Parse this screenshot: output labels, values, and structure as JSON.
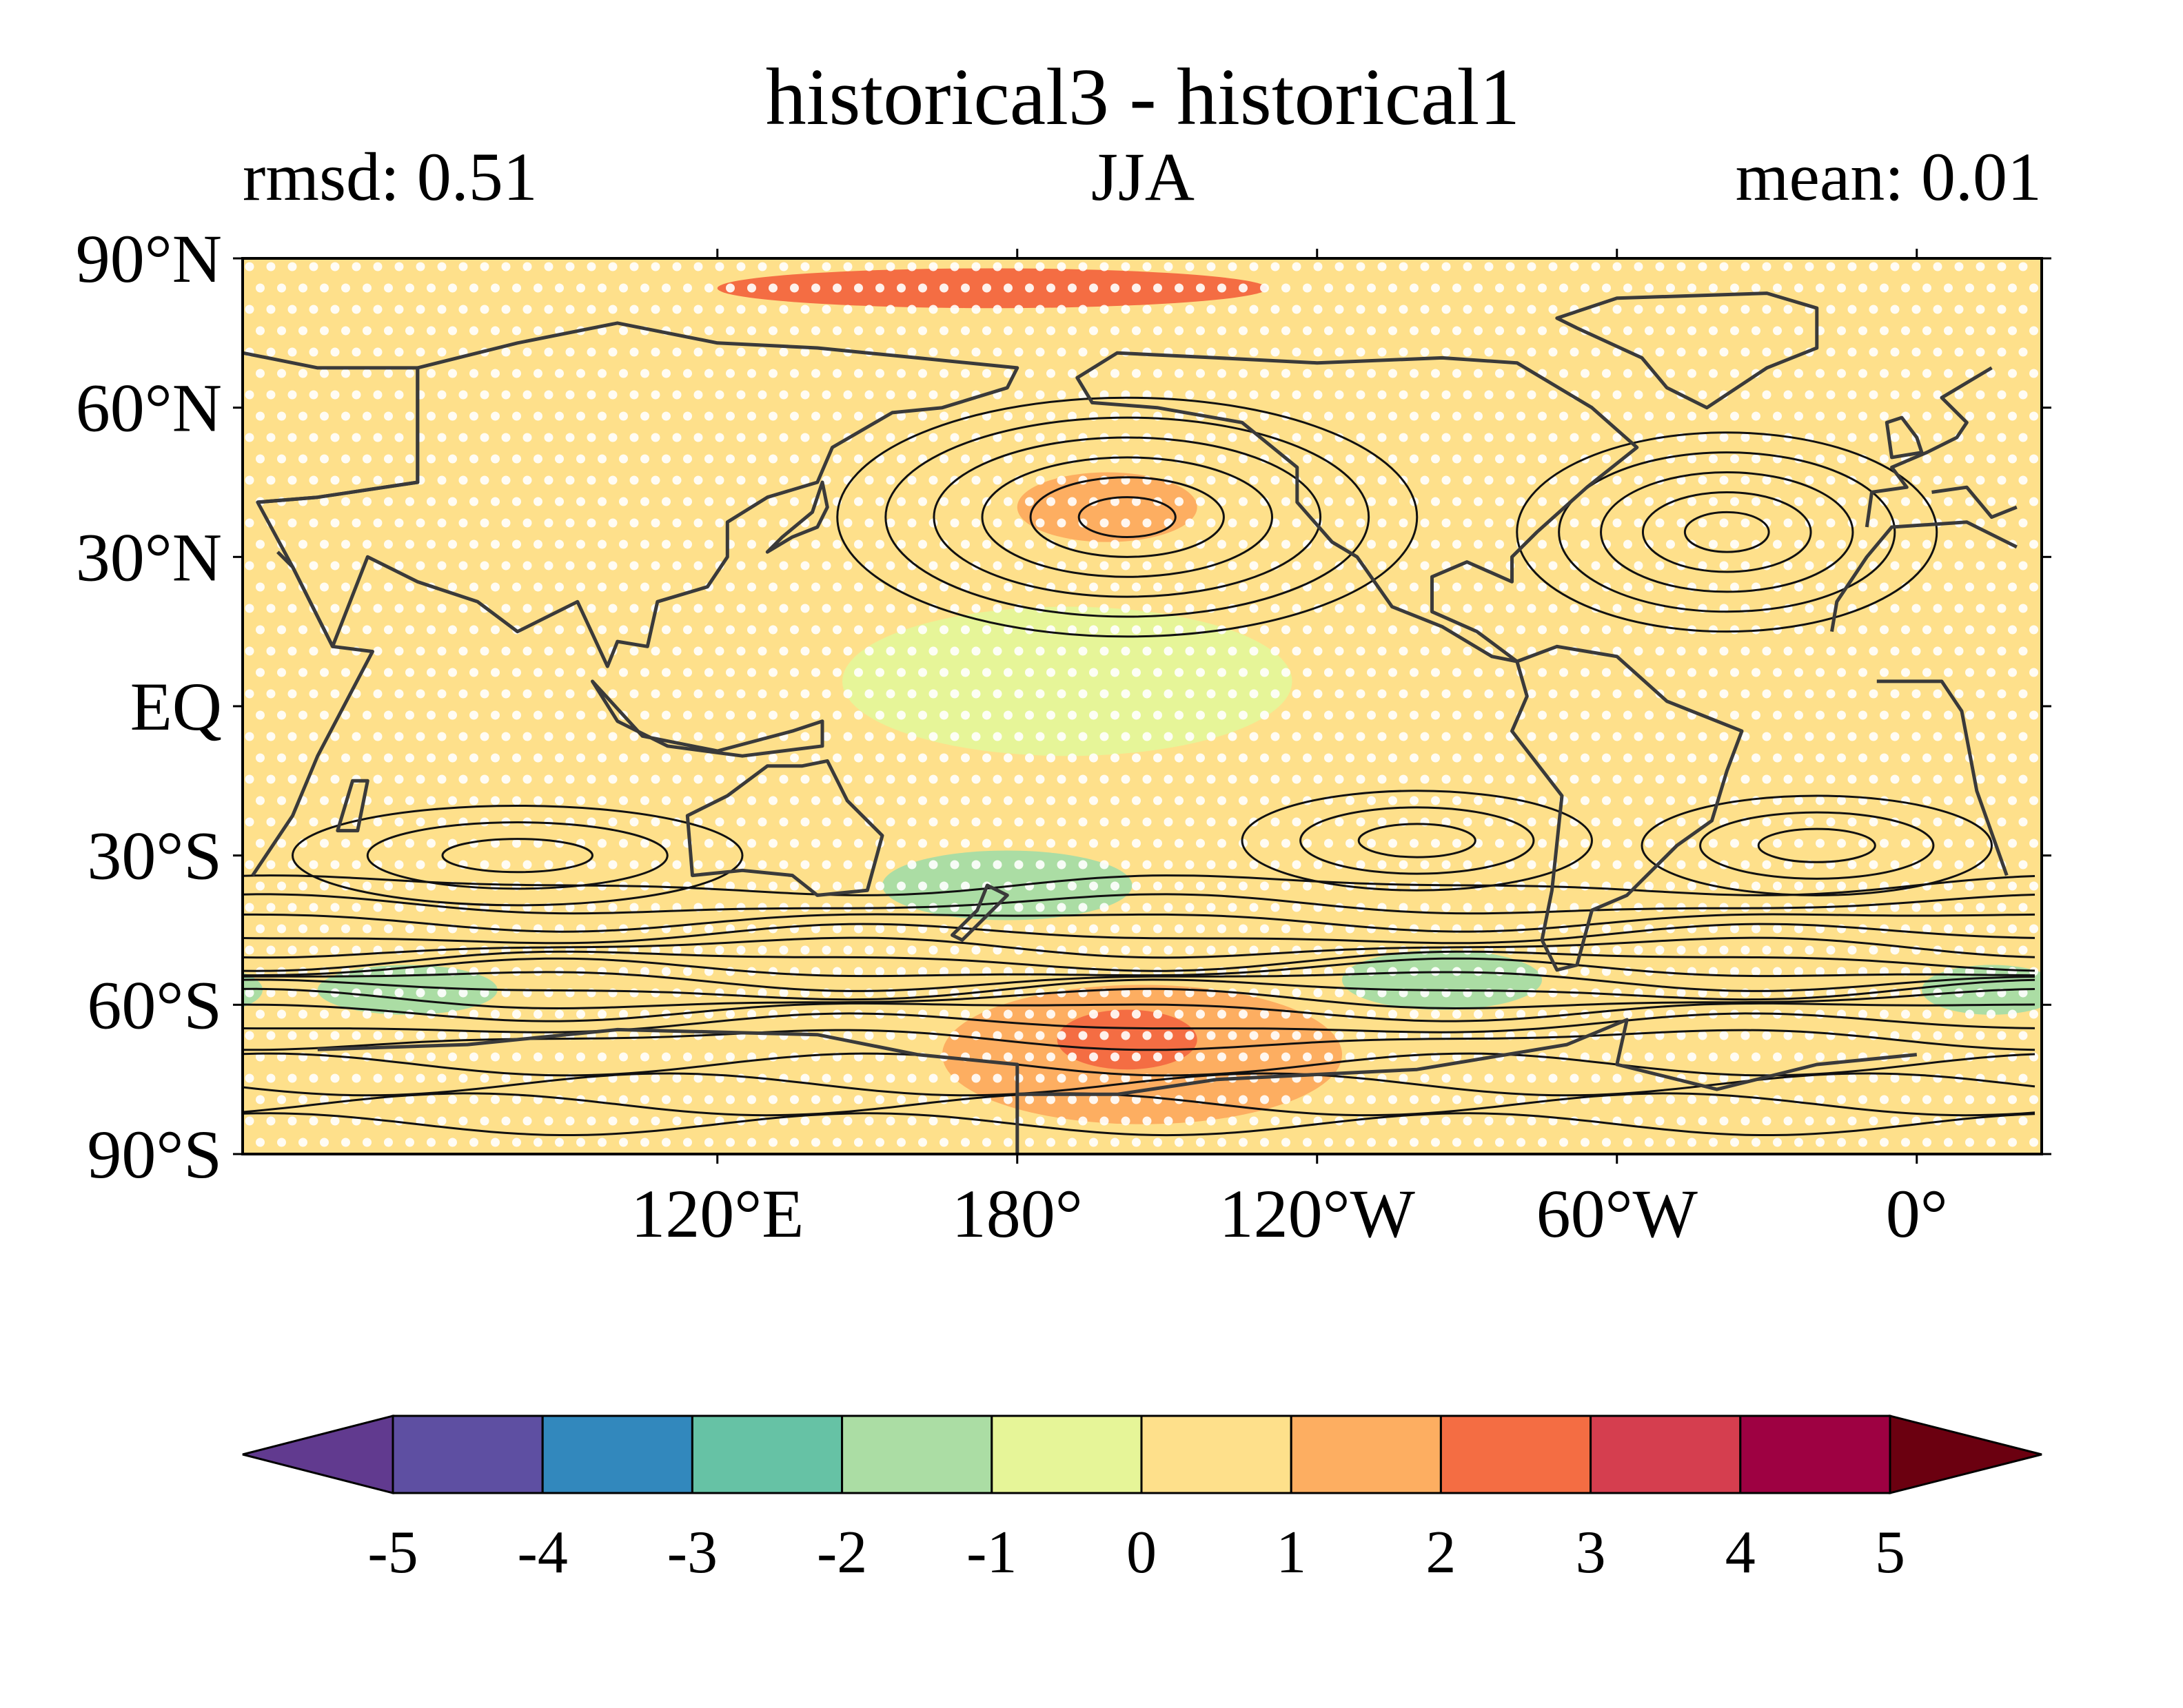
{
  "figure": {
    "title": "historical3 - historical1",
    "left_annotation": "rmsd: 0.51",
    "center_annotation": "JJA",
    "right_annotation": "mean: 0.01"
  },
  "map": {
    "projection": "equirectangular",
    "central_longitude": -155,
    "lat_range": [
      -90,
      90
    ],
    "lat_ticks": [
      {
        "value": 90,
        "label": "90°N"
      },
      {
        "value": 60,
        "label": "60°N"
      },
      {
        "value": 30,
        "label": "30°N"
      },
      {
        "value": 0,
        "label": "EQ"
      },
      {
        "value": -30,
        "label": "30°S"
      },
      {
        "value": -60,
        "label": "60°S"
      },
      {
        "value": -90,
        "label": "90°S"
      }
    ],
    "lon_ticks": [
      {
        "value": 120,
        "label": "120°E"
      },
      {
        "value": 180,
        "label": "180°"
      },
      {
        "value": -120,
        "label": "120°W"
      },
      {
        "value": -60,
        "label": "60°W"
      },
      {
        "value": 0,
        "label": "0°"
      }
    ],
    "background_class": 0.5,
    "anomaly_patches": [
      {
        "name": "arctic-positive",
        "lon": 175,
        "lat": 84,
        "rlon": 55,
        "rlat": 4,
        "value": 2.5
      },
      {
        "name": "north-pacific-high",
        "lon": -162,
        "lat": 40,
        "rlon": 18,
        "rlat": 7,
        "value": 1.5
      },
      {
        "name": "south-pacific-negative",
        "lon": 178,
        "lat": -36,
        "rlon": 25,
        "rlat": 7,
        "value": -1.5
      },
      {
        "name": "amundsen-positive",
        "lon": -155,
        "lat": -70,
        "rlon": 40,
        "rlat": 14,
        "value": 1.5
      },
      {
        "name": "amundsen-core",
        "lon": -158,
        "lat": -67,
        "rlon": 14,
        "rlat": 6,
        "value": 2.5
      },
      {
        "name": "south-atlantic-negative",
        "lon": -95,
        "lat": -55,
        "rlon": 20,
        "rlat": 6,
        "value": -1.5
      },
      {
        "name": "indian-negative",
        "lon": 58,
        "lat": -57,
        "rlon": 18,
        "rlat": 5,
        "value": -1.5
      },
      {
        "name": "west-indian-negative",
        "lon": 15,
        "lat": -57,
        "rlon": 14,
        "rlat": 5,
        "value": -1.5
      },
      {
        "name": "tropical-pacific-neutral",
        "lon": -170,
        "lat": 5,
        "rlon": 45,
        "rlat": 15,
        "value": -0.5
      },
      {
        "name": "south-atlantic-positive",
        "lon": -20,
        "lat": -15,
        "rlon": 25,
        "rlat": 15,
        "value": 0.5
      },
      {
        "name": "north-atlantic-positive",
        "lon": -40,
        "lat": 30,
        "rlon": 25,
        "rlat": 12,
        "value": 0.5
      }
    ],
    "climatology_highs": [
      {
        "name": "north-pacific-high",
        "lon": -158,
        "lat": 38,
        "rlon": 58,
        "rlat": 24,
        "levels": 6
      },
      {
        "name": "north-atlantic-high",
        "lon": -38,
        "lat": 35,
        "rlon": 42,
        "rlat": 20,
        "levels": 5
      },
      {
        "name": "south-indian-high",
        "lon": 80,
        "lat": -30,
        "rlon": 45,
        "rlat": 10,
        "levels": 3
      },
      {
        "name": "south-pacific-high",
        "lon": -100,
        "lat": -27,
        "rlon": 35,
        "rlat": 10,
        "levels": 3
      },
      {
        "name": "south-atlantic-high",
        "lon": -20,
        "lat": -28,
        "rlon": 35,
        "rlat": 10,
        "levels": 3
      }
    ],
    "storm_track_lats": [
      -36,
      -40,
      -43,
      -46,
      -48.5,
      -51,
      -53,
      -55,
      -57,
      -59,
      -61,
      -64,
      -67
    ],
    "land": [
      {
        "name": "north-america",
        "points": [
          [
            -168,
            66
          ],
          [
            -160,
            71
          ],
          [
            -140,
            70
          ],
          [
            -120,
            69
          ],
          [
            -95,
            70
          ],
          [
            -80,
            69
          ],
          [
            -65,
            60
          ],
          [
            -56,
            52
          ],
          [
            -66,
            44
          ],
          [
            -76,
            35
          ],
          [
            -81,
            30
          ],
          [
            -81,
            25
          ],
          [
            -90,
            29
          ],
          [
            -97,
            26
          ],
          [
            -97,
            19
          ],
          [
            -88,
            15
          ],
          [
            -80,
            9
          ],
          [
            -85,
            10
          ],
          [
            -95,
            16
          ],
          [
            -105,
            20
          ],
          [
            -112,
            30
          ],
          [
            -117,
            33
          ],
          [
            -124,
            41
          ],
          [
            -124,
            48
          ],
          [
            -135,
            57
          ],
          [
            -152,
            60
          ],
          [
            -165,
            61
          ]
        ]
      },
      {
        "name": "greenland",
        "points": [
          [
            -72,
            78
          ],
          [
            -60,
            82
          ],
          [
            -30,
            83
          ],
          [
            -20,
            80
          ],
          [
            -20,
            72
          ],
          [
            -30,
            68
          ],
          [
            -42,
            60
          ],
          [
            -50,
            64
          ],
          [
            -55,
            70
          ],
          [
            -68,
            76
          ]
        ]
      },
      {
        "name": "south-america",
        "points": [
          [
            -80,
            9
          ],
          [
            -72,
            12
          ],
          [
            -60,
            10
          ],
          [
            -50,
            1
          ],
          [
            -35,
            -5
          ],
          [
            -38,
            -13
          ],
          [
            -41,
            -23
          ],
          [
            -48,
            -28
          ],
          [
            -58,
            -38
          ],
          [
            -65,
            -41
          ],
          [
            -68,
            -52
          ],
          [
            -72,
            -53
          ],
          [
            -75,
            -47
          ],
          [
            -73,
            -37
          ],
          [
            -71,
            -18
          ],
          [
            -81,
            -5
          ],
          [
            -78,
            2
          ]
        ]
      },
      {
        "name": "africa",
        "points": [
          [
            -17,
            15
          ],
          [
            -16,
            21
          ],
          [
            -10,
            30
          ],
          [
            -5,
            36
          ],
          [
            10,
            37
          ],
          [
            20,
            32
          ],
          [
            32,
            31
          ],
          [
            35,
            28
          ],
          [
            43,
            12
          ],
          [
            51,
            11
          ],
          [
            40,
            -10
          ],
          [
            35,
            -22
          ],
          [
            27,
            -34
          ],
          [
            18,
            -34
          ],
          [
            12,
            -17
          ],
          [
            9,
            -1
          ],
          [
            5,
            5
          ],
          [
            -8,
            5
          ]
        ]
      },
      {
        "name": "europe",
        "points": [
          [
            -10,
            36
          ],
          [
            -9,
            43
          ],
          [
            -2,
            44
          ],
          [
            -5,
            48
          ],
          [
            2,
            51
          ],
          [
            8,
            54
          ],
          [
            10,
            57
          ],
          [
            5,
            62
          ],
          [
            15,
            68
          ],
          [
            25,
            71
          ],
          [
            40,
            68
          ],
          [
            60,
            68
          ],
          [
            60,
            45
          ],
          [
            40,
            42
          ],
          [
            28,
            41
          ],
          [
            20,
            40
          ],
          [
            15,
            38
          ],
          [
            10,
            44
          ],
          [
            3,
            43
          ]
        ]
      },
      {
        "name": "asia",
        "points": [
          [
            60,
            68
          ],
          [
            80,
            73
          ],
          [
            100,
            77
          ],
          [
            120,
            73
          ],
          [
            140,
            72
          ],
          [
            160,
            70
          ],
          [
            180,
            68
          ],
          [
            178,
            64
          ],
          [
            165,
            60
          ],
          [
            155,
            59
          ],
          [
            143,
            52
          ],
          [
            140,
            45
          ],
          [
            130,
            42
          ],
          [
            122,
            37
          ],
          [
            122,
            30
          ],
          [
            118,
            24
          ],
          [
            108,
            21
          ],
          [
            106,
            12
          ],
          [
            100,
            13
          ],
          [
            98,
            8
          ],
          [
            92,
            21
          ],
          [
            80,
            15
          ],
          [
            72,
            21
          ],
          [
            60,
            25
          ],
          [
            50,
            30
          ],
          [
            43,
            12
          ],
          [
            35,
            28
          ],
          [
            28,
            41
          ],
          [
            40,
            42
          ],
          [
            60,
            45
          ]
        ]
      },
      {
        "name": "australia",
        "points": [
          [
            114,
            -22
          ],
          [
            122,
            -18
          ],
          [
            130,
            -12
          ],
          [
            137,
            -12
          ],
          [
            142,
            -11
          ],
          [
            146,
            -19
          ],
          [
            153,
            -26
          ],
          [
            150,
            -37
          ],
          [
            140,
            -38
          ],
          [
            135,
            -34
          ],
          [
            125,
            -33
          ],
          [
            115,
            -34
          ]
        ]
      },
      {
        "name": "antarctica",
        "points": [
          [
            -180,
            -90
          ],
          [
            180,
            -90
          ],
          [
            180,
            -72
          ],
          [
            160,
            -70
          ],
          [
            140,
            -66
          ],
          [
            100,
            -65
          ],
          [
            70,
            -68
          ],
          [
            40,
            -69
          ],
          [
            0,
            -70
          ],
          [
            -20,
            -72
          ],
          [
            -40,
            -77
          ],
          [
            -60,
            -72
          ],
          [
            -58,
            -63
          ],
          [
            -70,
            -68
          ],
          [
            -100,
            -73
          ],
          [
            -140,
            -75
          ],
          [
            -160,
            -78
          ],
          [
            -180,
            -78
          ]
        ]
      },
      {
        "name": "indonesia",
        "points": [
          [
            95,
            5
          ],
          [
            105,
            -6
          ],
          [
            120,
            -9
          ],
          [
            135,
            -5
          ],
          [
            141,
            -3
          ],
          [
            141,
            -8
          ],
          [
            125,
            -10
          ],
          [
            110,
            -8
          ],
          [
            100,
            -3
          ]
        ]
      },
      {
        "name": "japan",
        "points": [
          [
            130,
            31
          ],
          [
            135,
            34
          ],
          [
            140,
            36
          ],
          [
            142,
            40
          ],
          [
            141,
            45
          ],
          [
            139,
            39
          ],
          [
            133,
            34
          ]
        ]
      },
      {
        "name": "madagascar",
        "points": [
          [
            44,
            -25
          ],
          [
            47,
            -15
          ],
          [
            50,
            -15
          ],
          [
            48,
            -25
          ]
        ]
      },
      {
        "name": "new-zealand",
        "points": [
          [
            167,
            -46
          ],
          [
            172,
            -41
          ],
          [
            174,
            -36
          ],
          [
            178,
            -38
          ],
          [
            173,
            -43
          ],
          [
            169,
            -47
          ]
        ]
      },
      {
        "name": "uk",
        "points": [
          [
            -5,
            50
          ],
          [
            1,
            51
          ],
          [
            0,
            54
          ],
          [
            -3,
            58
          ],
          [
            -6,
            57
          ]
        ]
      }
    ]
  },
  "colorbar": {
    "boundaries": [
      -5,
      -4,
      -3,
      -2,
      -1,
      0,
      1,
      2,
      3,
      4,
      5
    ],
    "tick_labels": [
      "-5",
      "-4",
      "-3",
      "-2",
      "-1",
      "0",
      "1",
      "2",
      "3",
      "4",
      "5"
    ],
    "under_color": "#5e3c99",
    "over_color": "#67000d",
    "colors": [
      "#5e4fa2",
      "#3288bd",
      "#66c2a5",
      "#abdda4",
      "#e6f598",
      "#fee08b",
      "#fdae61",
      "#f46d43",
      "#d53e4f",
      "#9e0142"
    ],
    "under_label_color": "#613a8f",
    "over_label_color": "#6b0010"
  },
  "style": {
    "stipple_color": "#ffffff",
    "contour_color": "#111111",
    "coast_color": "#3a3a3a"
  }
}
